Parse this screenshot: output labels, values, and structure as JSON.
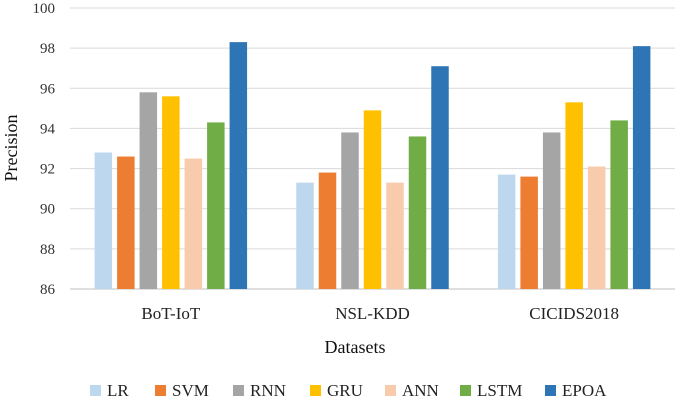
{
  "chart_data": {
    "type": "bar",
    "title": "",
    "xlabel": "Datasets",
    "ylabel": "Precision",
    "ylim": [
      86,
      100
    ],
    "yticks": [
      86,
      88,
      90,
      92,
      94,
      96,
      98,
      100
    ],
    "grid": true,
    "legend_position": "bottom",
    "categories": [
      "BoT-IoT",
      "NSL-KDD",
      "CICIDS2018"
    ],
    "series": [
      {
        "name": "LR",
        "color": "#BDD7EE",
        "values": [
          92.8,
          91.3,
          91.7
        ]
      },
      {
        "name": "SVM",
        "color": "#ED7D31",
        "values": [
          92.6,
          91.8,
          91.6
        ]
      },
      {
        "name": "RNN",
        "color": "#A5A5A5",
        "values": [
          95.8,
          93.8,
          93.8
        ]
      },
      {
        "name": "GRU",
        "color": "#FFC000",
        "values": [
          95.6,
          94.9,
          95.3
        ]
      },
      {
        "name": "ANN",
        "color": "#F8CBAD",
        "values": [
          92.5,
          91.3,
          92.1
        ]
      },
      {
        "name": "LSTM",
        "color": "#70AD47",
        "values": [
          94.3,
          93.6,
          94.4
        ]
      },
      {
        "name": "EPOA",
        "color": "#2E75B6",
        "values": [
          98.3,
          97.1,
          98.1
        ]
      }
    ]
  }
}
